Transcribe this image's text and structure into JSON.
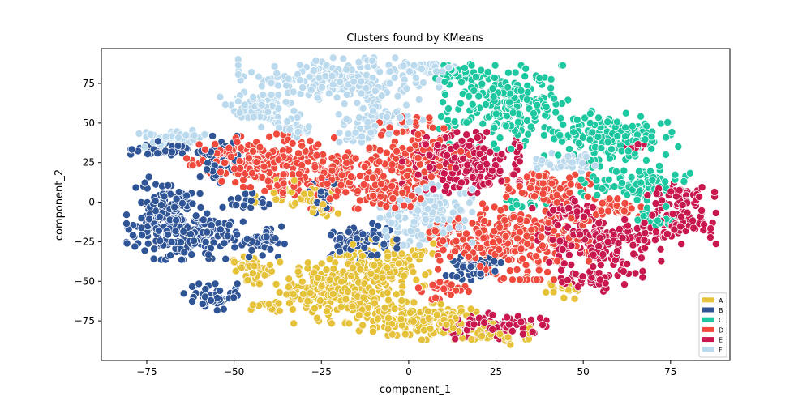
{
  "chart_data": {
    "type": "scatter",
    "title": "Clusters found by KMeans",
    "xlabel": "component_1",
    "ylabel": "component_2",
    "xlim": [
      -88,
      92
    ],
    "ylim": [
      -100,
      97
    ],
    "xticks": [
      -75,
      -50,
      -25,
      0,
      25,
      50,
      75
    ],
    "yticks": [
      -75,
      -50,
      -25,
      0,
      25,
      50,
      75
    ],
    "grid": false,
    "legend_position": "lower-right",
    "series": [
      {
        "name": "A",
        "color": "#e6c13a",
        "regions": [
          {
            "cx": -20,
            "cy": -55,
            "rx": 15,
            "ry": 18,
            "n": 240
          },
          {
            "cx": -6,
            "cy": -40,
            "rx": 12,
            "ry": 14,
            "n": 120
          },
          {
            "cx": 5,
            "cy": -75,
            "rx": 16,
            "ry": 10,
            "n": 170
          },
          {
            "cx": 25,
            "cy": -84,
            "rx": 8,
            "ry": 5,
            "n": 40
          },
          {
            "cx": -45,
            "cy": -42,
            "rx": 6,
            "ry": 8,
            "n": 45
          },
          {
            "cx": -32,
            "cy": 5,
            "rx": 10,
            "ry": 8,
            "n": 40
          },
          {
            "cx": -25,
            "cy": -5,
            "rx": 4,
            "ry": 3,
            "n": 15
          },
          {
            "cx": 45,
            "cy": -55,
            "rx": 5,
            "ry": 5,
            "n": 18
          },
          {
            "cx": -40,
            "cy": -68,
            "rx": 5,
            "ry": 4,
            "n": 12
          }
        ]
      },
      {
        "name": "B",
        "color": "#2f5597",
        "regions": [
          {
            "cx": -70,
            "cy": -10,
            "rx": 9,
            "ry": 22,
            "n": 220
          },
          {
            "cx": -57,
            "cy": -20,
            "rx": 8,
            "ry": 14,
            "n": 90
          },
          {
            "cx": -70,
            "cy": 34,
            "rx": 8,
            "ry": 4,
            "n": 40
          },
          {
            "cx": -56,
            "cy": -60,
            "rx": 7,
            "ry": 7,
            "n": 55
          },
          {
            "cx": -42,
            "cy": -25,
            "rx": 6,
            "ry": 8,
            "n": 45
          },
          {
            "cx": -55,
            "cy": 25,
            "rx": 6,
            "ry": 14,
            "n": 50
          },
          {
            "cx": -13,
            "cy": -25,
            "rx": 8,
            "ry": 10,
            "n": 85
          },
          {
            "cx": -25,
            "cy": 5,
            "rx": 5,
            "ry": 10,
            "n": 30
          },
          {
            "cx": 18,
            "cy": -40,
            "rx": 7,
            "ry": 8,
            "n": 45
          },
          {
            "cx": -45,
            "cy": 0,
            "rx": 5,
            "ry": 5,
            "n": 18
          }
        ]
      },
      {
        "name": "C",
        "color": "#1dc8a0",
        "regions": [
          {
            "cx": 28,
            "cy": 60,
            "rx": 16,
            "ry": 22,
            "n": 210
          },
          {
            "cx": 58,
            "cy": 42,
            "rx": 16,
            "ry": 13,
            "n": 180
          },
          {
            "cx": 65,
            "cy": 12,
            "rx": 13,
            "ry": 9,
            "n": 90
          },
          {
            "cx": 70,
            "cy": -10,
            "rx": 5,
            "ry": 6,
            "n": 25
          },
          {
            "cx": 32,
            "cy": -2,
            "rx": 8,
            "ry": 4,
            "n": 18
          },
          {
            "cx": 15,
            "cy": 80,
            "rx": 10,
            "ry": 6,
            "n": 40
          }
        ]
      },
      {
        "name": "D",
        "color": "#f04a3e",
        "regions": [
          {
            "cx": -42,
            "cy": 25,
            "rx": 18,
            "ry": 15,
            "n": 190
          },
          {
            "cx": -18,
            "cy": 15,
            "rx": 15,
            "ry": 16,
            "n": 180
          },
          {
            "cx": 3,
            "cy": 30,
            "rx": 12,
            "ry": 20,
            "n": 120
          },
          {
            "cx": 30,
            "cy": -25,
            "rx": 18,
            "ry": 20,
            "n": 300
          },
          {
            "cx": 40,
            "cy": 10,
            "rx": 10,
            "ry": 10,
            "n": 80
          },
          {
            "cx": 60,
            "cy": -5,
            "rx": 8,
            "ry": 6,
            "n": 40
          },
          {
            "cx": 10,
            "cy": -55,
            "rx": 6,
            "ry": 6,
            "n": 30
          },
          {
            "cx": -3,
            "cy": 3,
            "rx": 7,
            "ry": 6,
            "n": 40
          },
          {
            "cx": 10,
            "cy": -20,
            "rx": 5,
            "ry": 6,
            "n": 25
          }
        ]
      },
      {
        "name": "E",
        "color": "#c8184e",
        "regions": [
          {
            "cx": 15,
            "cy": 25,
            "rx": 14,
            "ry": 16,
            "n": 230
          },
          {
            "cx": 55,
            "cy": -25,
            "rx": 15,
            "ry": 13,
            "n": 160
          },
          {
            "cx": 76,
            "cy": -12,
            "rx": 10,
            "ry": 12,
            "n": 90
          },
          {
            "cx": 78,
            "cy": 5,
            "rx": 8,
            "ry": 6,
            "n": 40
          },
          {
            "cx": 25,
            "cy": -78,
            "rx": 12,
            "ry": 7,
            "n": 110
          },
          {
            "cx": 55,
            "cy": -48,
            "rx": 10,
            "ry": 7,
            "n": 50
          },
          {
            "cx": 45,
            "cy": -5,
            "rx": 8,
            "ry": 6,
            "n": 40
          },
          {
            "cx": 65,
            "cy": 35,
            "rx": 3,
            "ry": 3,
            "n": 10
          }
        ]
      },
      {
        "name": "F",
        "color": "#bcdaed",
        "regions": [
          {
            "cx": -20,
            "cy": 78,
            "rx": 24,
            "ry": 11,
            "n": 230
          },
          {
            "cx": -42,
            "cy": 60,
            "rx": 10,
            "ry": 11,
            "n": 90
          },
          {
            "cx": -8,
            "cy": 55,
            "rx": 10,
            "ry": 10,
            "n": 60
          },
          {
            "cx": 5,
            "cy": -8,
            "rx": 11,
            "ry": 16,
            "n": 170
          },
          {
            "cx": -68,
            "cy": 40,
            "rx": 8,
            "ry": 5,
            "n": 45
          },
          {
            "cx": 45,
            "cy": 25,
            "rx": 7,
            "ry": 5,
            "n": 40
          },
          {
            "cx": 5,
            "cy": 84,
            "rx": 10,
            "ry": 4,
            "n": 40
          },
          {
            "cx": -15,
            "cy": 42,
            "rx": 5,
            "ry": 5,
            "n": 25
          },
          {
            "cx": -32,
            "cy": 45,
            "rx": 5,
            "ry": 5,
            "n": 20
          }
        ]
      }
    ]
  }
}
